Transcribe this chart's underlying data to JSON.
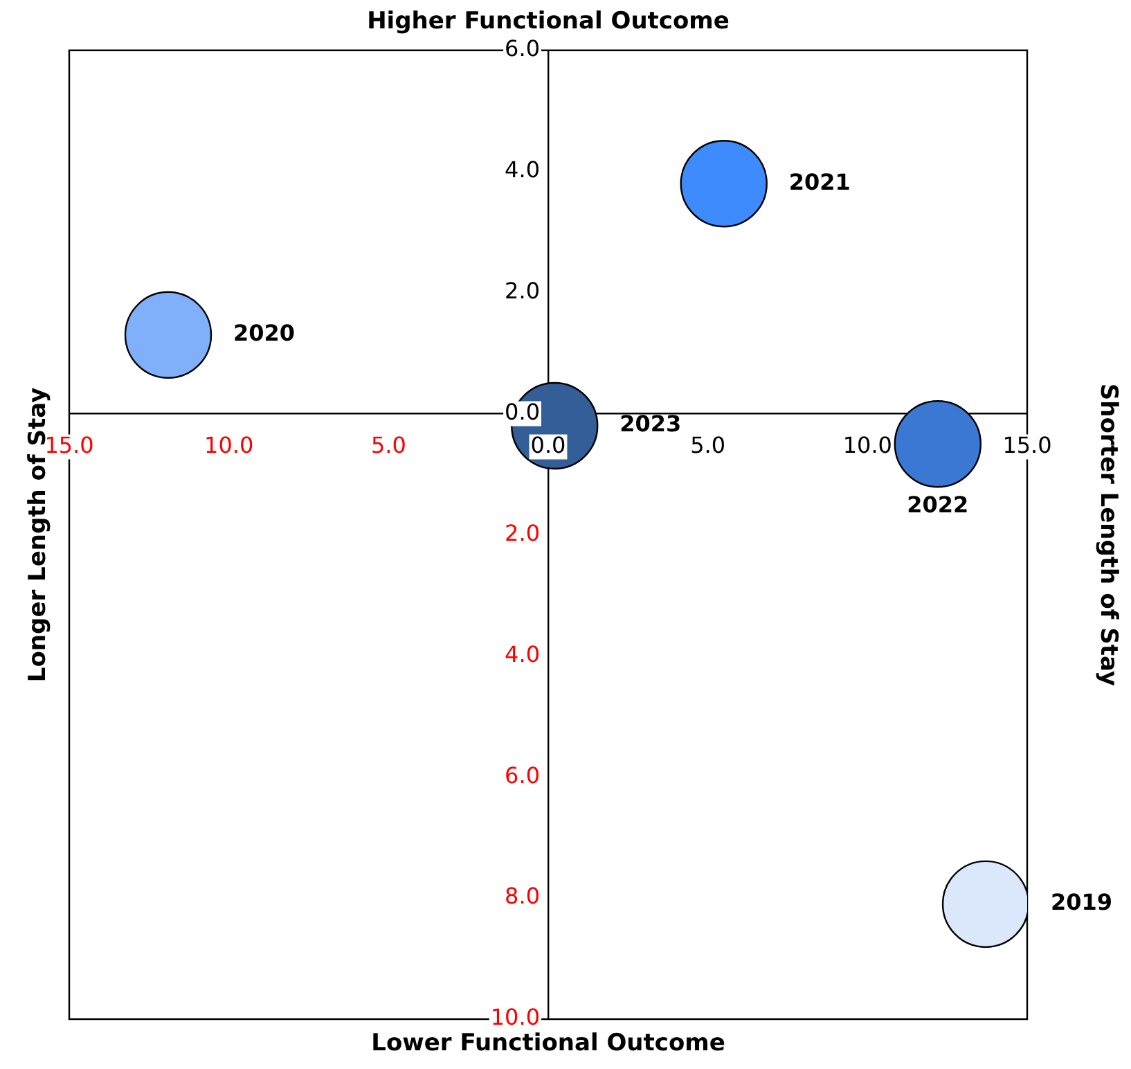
{
  "chart_data": {
    "type": "bubble",
    "title": "Higher Functional Outcome",
    "xlabel": "Lower Functional Outcome",
    "ylabel": "Longer Length of Stay",
    "y2label": "Shorter Length of Stay",
    "xlim": [
      -15,
      15
    ],
    "xticks": [
      {
        "value": -15,
        "label": "15.0"
      },
      {
        "value": -10,
        "label": "10.0"
      },
      {
        "value": -5,
        "label": "5.0"
      },
      {
        "value": 0,
        "label": "0.0"
      },
      {
        "value": 5,
        "label": "5.0"
      },
      {
        "value": 10,
        "label": "10.0"
      },
      {
        "value": 15,
        "label": "15.0"
      }
    ],
    "ylim": [
      -10,
      6
    ],
    "yticks": [
      {
        "value": -10,
        "label": "10.0"
      },
      {
        "value": -8,
        "label": "8.0"
      },
      {
        "value": -6,
        "label": "6.0"
      },
      {
        "value": -4,
        "label": "4.0"
      },
      {
        "value": -2,
        "label": "2.0"
      },
      {
        "value": 0,
        "label": "0.0"
      },
      {
        "value": 2,
        "label": "2.0"
      },
      {
        "value": 4,
        "label": "4.0"
      },
      {
        "value": 6,
        "label": "6.0"
      }
    ],
    "series": [
      {
        "name": "2019",
        "color": "#dbe8fc",
        "x": [
          13.7
        ],
        "values": [
          -8.1
        ],
        "sizes": [
          1
        ]
      },
      {
        "name": "2020",
        "color": "#80b0fc",
        "x": [
          -11.9
        ],
        "values": [
          1.3
        ],
        "sizes": [
          1
        ]
      },
      {
        "name": "2021",
        "color": "#3d8bfd",
        "x": [
          5.5
        ],
        "values": [
          3.8
        ],
        "sizes": [
          1
        ]
      },
      {
        "name": "2022",
        "color": "#3b78d4",
        "x": [
          12.2
        ],
        "values": [
          -0.5
        ],
        "sizes": [
          1
        ]
      },
      {
        "name": "2023",
        "color": "#345e98",
        "x": [
          0.2
        ],
        "values": [
          -0.2
        ],
        "sizes": [
          1
        ]
      }
    ]
  }
}
